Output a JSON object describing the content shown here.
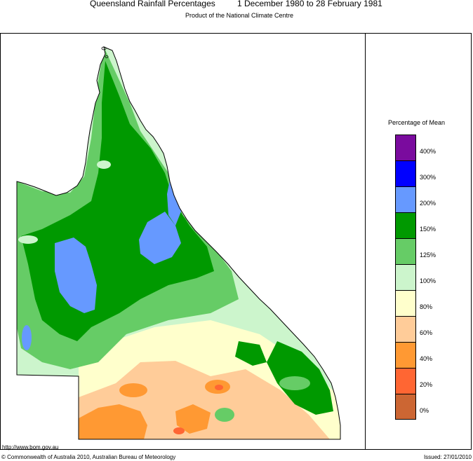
{
  "header": {
    "title": "Queensland Rainfall Percentages",
    "period": "1 December 1980 to 28 February 1981",
    "subtitle": "Product of the National Climate Centre"
  },
  "legend": {
    "title": "Percentage of Mean",
    "categories": [
      {
        "label": "400%",
        "color": "#7a0b9e"
      },
      {
        "label": "300%",
        "color": "#0000ff"
      },
      {
        "label": "200%",
        "color": "#6699ff"
      },
      {
        "label": "150%",
        "color": "#009900"
      },
      {
        "label": "125%",
        "color": "#66cc66"
      },
      {
        "label": "100%",
        "color": "#ccf5cc"
      },
      {
        "label": "80%",
        "color": "#ffffcc"
      },
      {
        "label": "60%",
        "color": "#ffcc99"
      },
      {
        "label": "40%",
        "color": "#ff9933"
      },
      {
        "label": "20%",
        "color": "#ff6633"
      },
      {
        "label": "0%",
        "color": "#cc6633"
      }
    ]
  },
  "footer": {
    "url": "http://www.bom.gov.au",
    "copyright": "© Commonwealth of Australia 2010, Australian Bureau of Meteorology",
    "issued": "Issued: 27/01/2010"
  }
}
